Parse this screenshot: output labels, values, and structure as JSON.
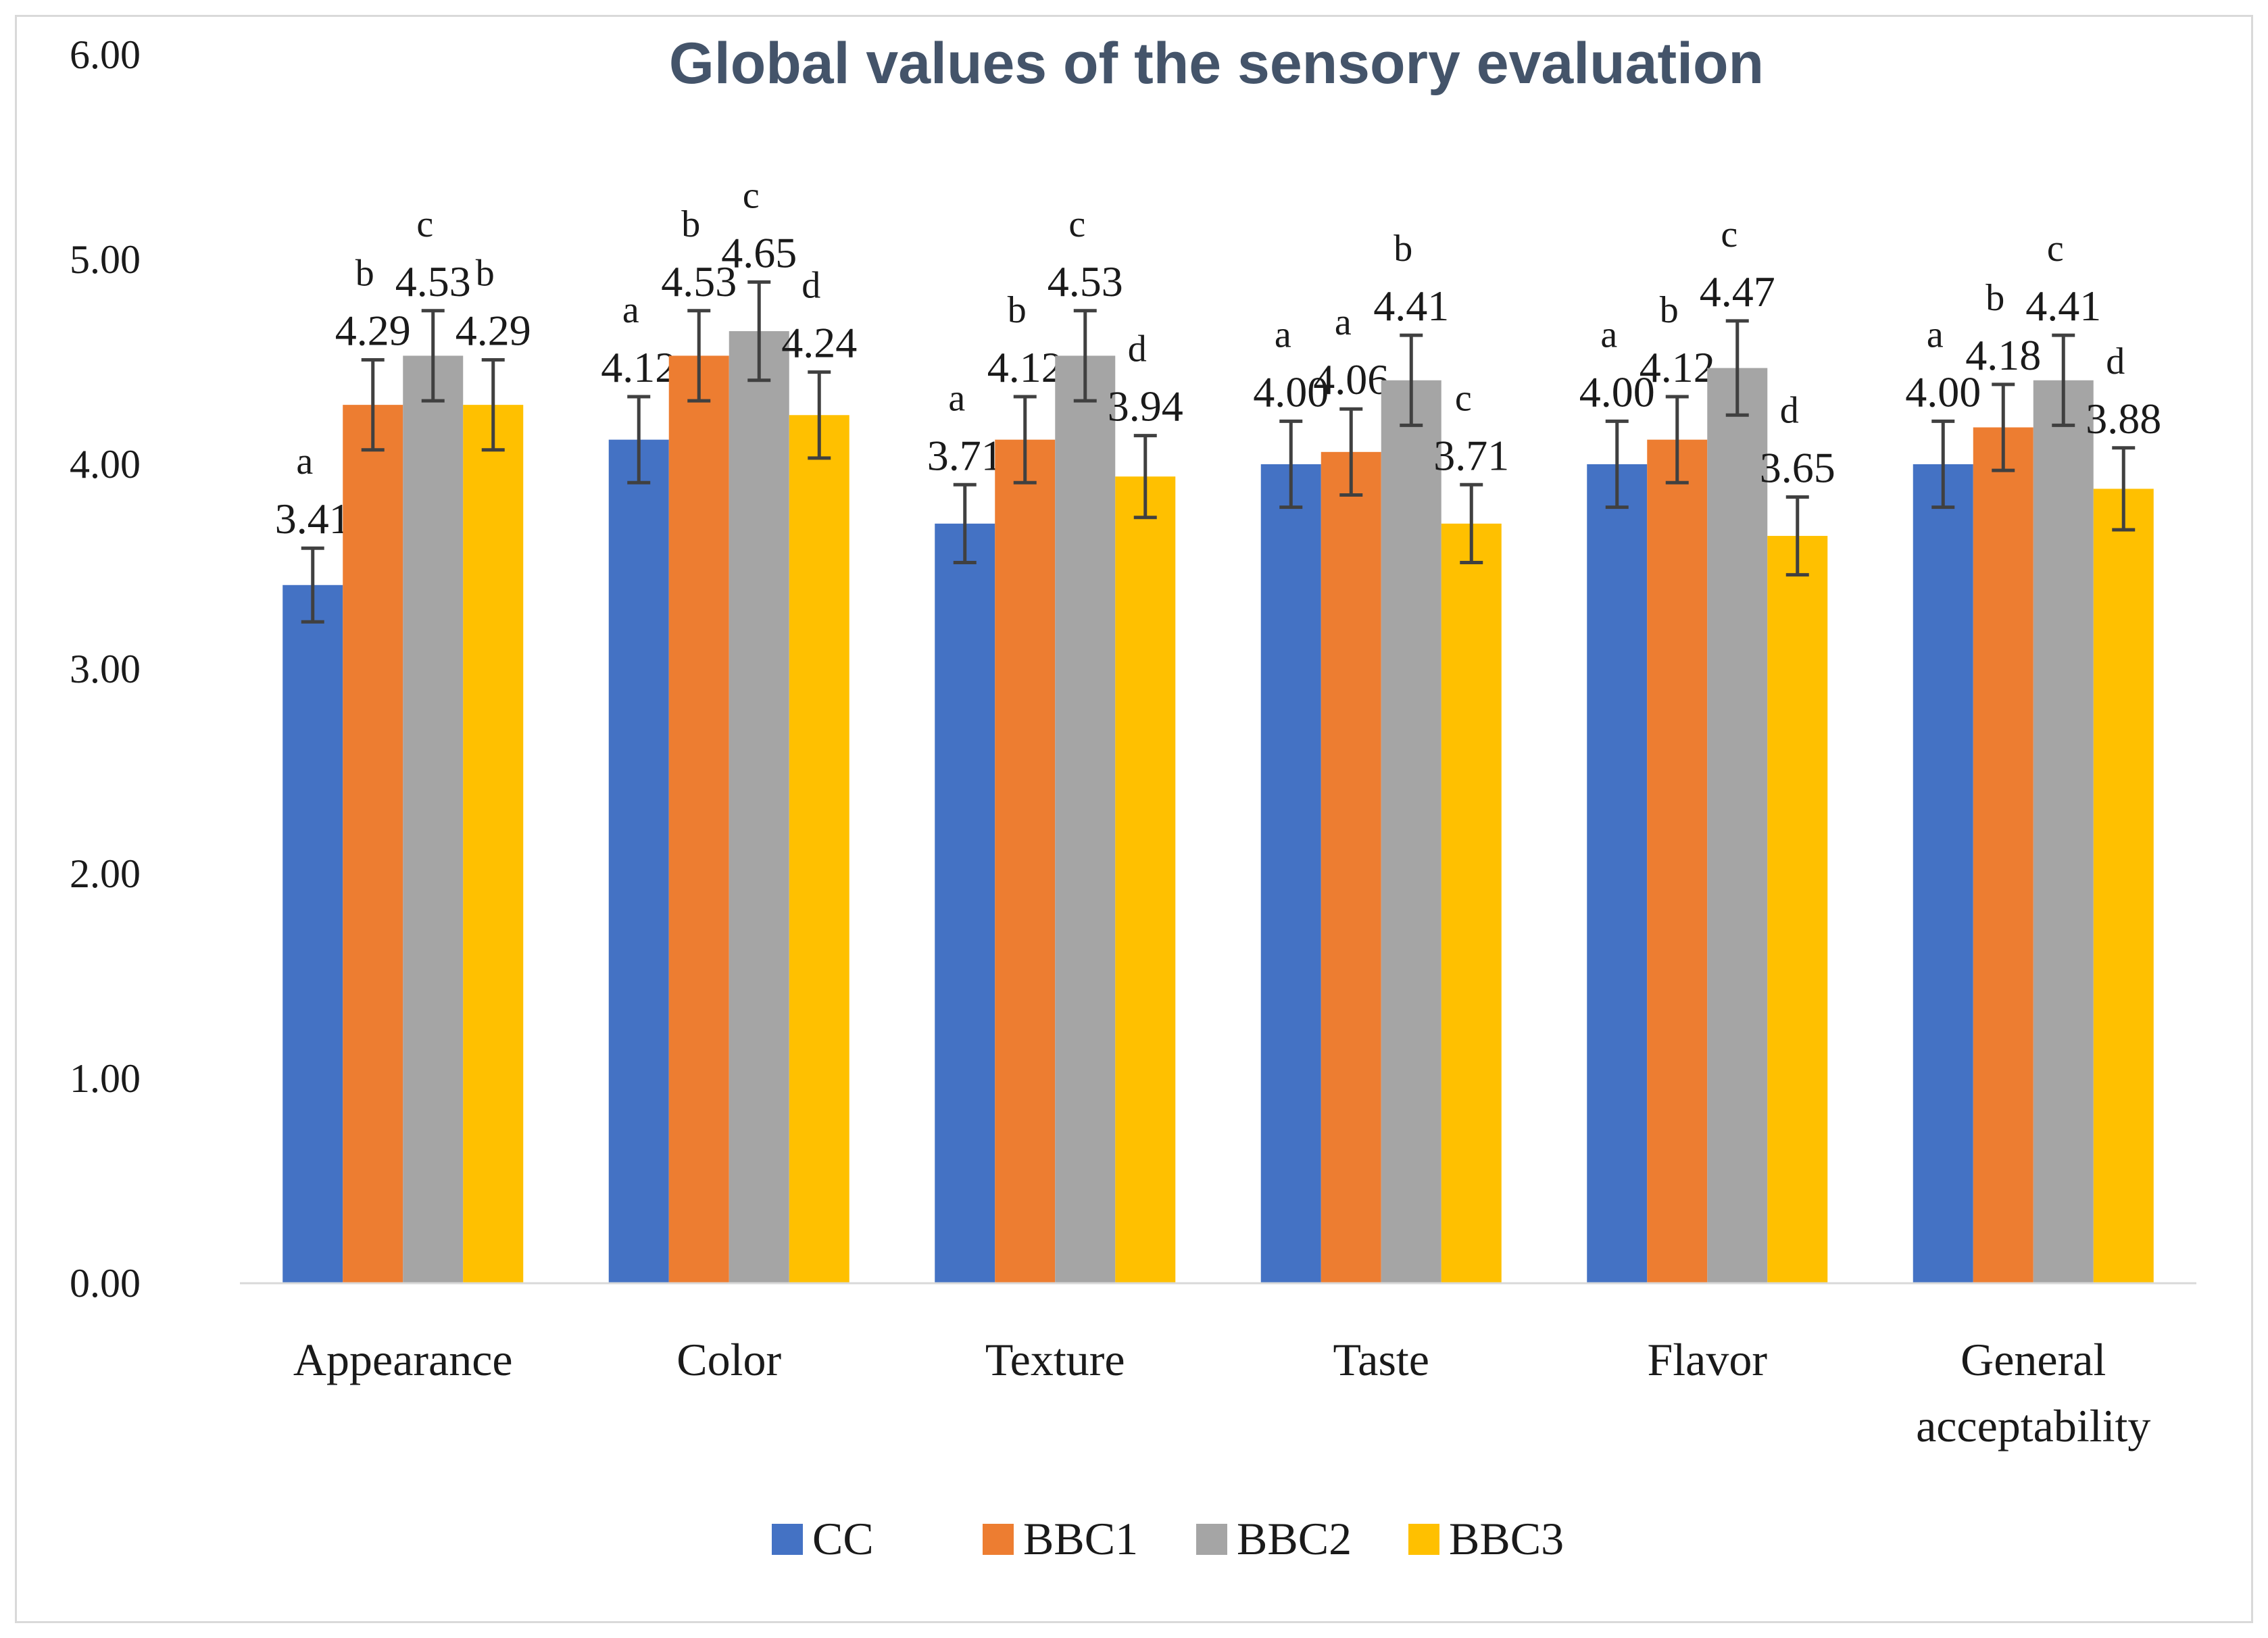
{
  "chart_data": {
    "type": "bar",
    "title": "Global values of the sensory evaluation",
    "xlabel": "",
    "ylabel": "",
    "ylim": [
      0,
      6
    ],
    "yticks": [
      "0.00",
      "1.00",
      "2.00",
      "3.00",
      "4.00",
      "5.00",
      "6.00"
    ],
    "grid": false,
    "legend_position": "bottom",
    "categories": [
      [
        "Appearance"
      ],
      [
        "Color"
      ],
      [
        "Texture"
      ],
      [
        "Taste"
      ],
      [
        "Flavor"
      ],
      [
        "General",
        "acceptability"
      ]
    ],
    "series": [
      {
        "name": "CC",
        "color": "#4472c4",
        "values": [
          3.41,
          4.12,
          3.71,
          4.0,
          4.0,
          4.0
        ],
        "labels": [
          "3.41",
          "4.12",
          "3.71",
          "4.00",
          "4.00",
          "4.00"
        ],
        "errors": [
          0.18,
          0.21,
          0.19,
          0.21,
          0.21,
          0.21
        ],
        "letters": [
          "a",
          "a",
          "a",
          "a",
          "a",
          "a"
        ]
      },
      {
        "name": "BBC1",
        "color": "#ed7d31",
        "values": [
          4.29,
          4.53,
          4.12,
          4.06,
          4.12,
          4.18
        ],
        "labels": [
          "4.29",
          "4.53",
          "4.12",
          "4.06",
          "4.12",
          "4.18"
        ],
        "errors": [
          0.22,
          0.22,
          0.21,
          0.21,
          0.21,
          0.21
        ],
        "letters": [
          "b",
          "b",
          "b",
          "a",
          "b",
          "b"
        ]
      },
      {
        "name": "BBC2",
        "color": "#a5a5a5",
        "values": [
          4.53,
          4.65,
          4.53,
          4.41,
          4.47,
          4.41
        ],
        "labels": [
          "4.53",
          "4.65",
          "4.53",
          "4.41",
          "4.47",
          "4.41"
        ],
        "errors": [
          0.22,
          0.24,
          0.22,
          0.22,
          0.23,
          0.22
        ],
        "letters": [
          "c",
          "c",
          "c",
          "b",
          "c",
          "c"
        ]
      },
      {
        "name": "BBC3",
        "color": "#ffc000",
        "values": [
          4.29,
          4.24,
          3.94,
          3.71,
          3.65,
          3.88
        ],
        "labels": [
          "4.29",
          "4.24",
          "3.94",
          "3.71",
          "3.65",
          "3.88"
        ],
        "errors": [
          0.22,
          0.21,
          0.2,
          0.19,
          0.19,
          0.2
        ],
        "letters": [
          "b",
          "d",
          "d",
          "c",
          "d",
          "d"
        ]
      }
    ]
  }
}
